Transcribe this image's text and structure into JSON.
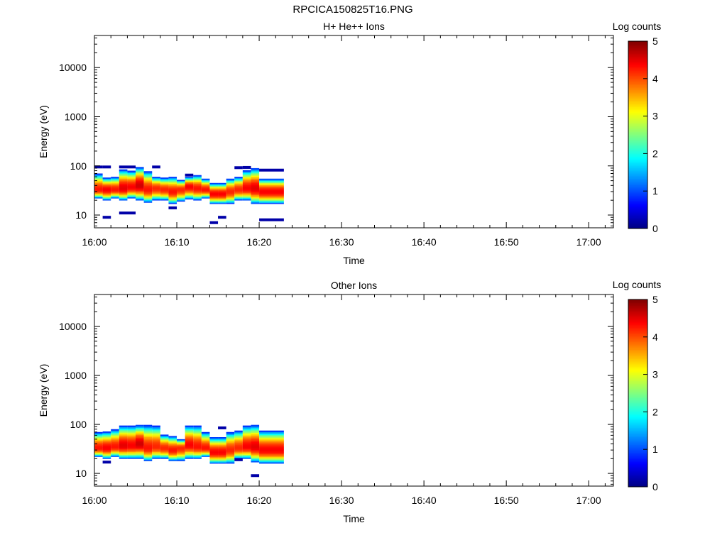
{
  "figure_title": "RPCICA150825T16.PNG",
  "colorbar": {
    "label": "Log counts",
    "ticks": [
      "0",
      "1",
      "2",
      "3",
      "4",
      "5"
    ],
    "colormap": "jet",
    "range": [
      0,
      5
    ]
  },
  "chart_data": [
    {
      "type": "heatmap",
      "title": "H+ He++ Ions",
      "xlabel": "Time",
      "ylabel": "Energy (eV)",
      "x_range": [
        "16:00",
        "17:03"
      ],
      "x_ticks": [
        "16:00",
        "16:10",
        "16:20",
        "16:30",
        "16:40",
        "16:50",
        "17:00"
      ],
      "y_scale": "log",
      "y_range": [
        5.5,
        45000
      ],
      "y_ticks": [
        "10",
        "100",
        "1000",
        "10000"
      ],
      "data_time_range": [
        "16:00",
        "16:23"
      ],
      "time_bins": [
        "16:00",
        "16:01",
        "16:02",
        "16:03",
        "16:04",
        "16:05",
        "16:06",
        "16:07",
        "16:08",
        "16:09",
        "16:10",
        "16:11",
        "16:12",
        "16:13",
        "16:14",
        "16:15",
        "16:16",
        "16:17",
        "16:18",
        "16:19",
        "16:20",
        "16:21",
        "16:22"
      ],
      "bins": [
        {
          "t0": "16:00",
          "t1": "16:01",
          "e_low": 22,
          "e_high": 70,
          "e_peak": 33,
          "max_log": 4.3
        },
        {
          "t0": "16:01",
          "t1": "16:02",
          "e_low": 20,
          "e_high": 58,
          "e_peak": 33,
          "max_log": 4.4
        },
        {
          "t0": "16:02",
          "t1": "16:03",
          "e_low": 22,
          "e_high": 60,
          "e_peak": 33,
          "max_log": 4.3
        },
        {
          "t0": "16:03",
          "t1": "16:04",
          "e_low": 20,
          "e_high": 85,
          "e_peak": 35,
          "max_log": 4.5
        },
        {
          "t0": "16:04",
          "t1": "16:05",
          "e_low": 22,
          "e_high": 80,
          "e_peak": 37,
          "max_log": 4.4
        },
        {
          "t0": "16:05",
          "t1": "16:06",
          "e_low": 20,
          "e_high": 95,
          "e_peak": 40,
          "max_log": 4.6
        },
        {
          "t0": "16:06",
          "t1": "16:07",
          "e_low": 18,
          "e_high": 78,
          "e_peak": 33,
          "max_log": 4.3
        },
        {
          "t0": "16:07",
          "t1": "16:08",
          "e_low": 20,
          "e_high": 60,
          "e_peak": 35,
          "max_log": 4.2
        },
        {
          "t0": "16:08",
          "t1": "16:09",
          "e_low": 20,
          "e_high": 58,
          "e_peak": 33,
          "max_log": 4.2
        },
        {
          "t0": "16:09",
          "t1": "16:10",
          "e_low": 17,
          "e_high": 60,
          "e_peak": 30,
          "max_log": 4.3
        },
        {
          "t0": "16:10",
          "t1": "16:11",
          "e_low": 19,
          "e_high": 52,
          "e_peak": 33,
          "max_log": 4.2
        },
        {
          "t0": "16:11",
          "t1": "16:12",
          "e_low": 21,
          "e_high": 60,
          "e_peak": 38,
          "max_log": 4.4
        },
        {
          "t0": "16:12",
          "t1": "16:13",
          "e_low": 20,
          "e_high": 65,
          "e_peak": 35,
          "max_log": 4.3
        },
        {
          "t0": "16:13",
          "t1": "16:14",
          "e_low": 22,
          "e_high": 55,
          "e_peak": 33,
          "max_log": 4.3
        },
        {
          "t0": "16:14",
          "t1": "16:15",
          "e_low": 17,
          "e_high": 45,
          "e_peak": 27,
          "max_log": 4.4
        },
        {
          "t0": "16:15",
          "t1": "16:16",
          "e_low": 17,
          "e_high": 45,
          "e_peak": 27,
          "max_log": 4.4
        },
        {
          "t0": "16:16",
          "t1": "16:17",
          "e_low": 17,
          "e_high": 55,
          "e_peak": 30,
          "max_log": 4.2
        },
        {
          "t0": "16:17",
          "t1": "16:18",
          "e_low": 20,
          "e_high": 60,
          "e_peak": 33,
          "max_log": 4.2
        },
        {
          "t0": "16:18",
          "t1": "16:19",
          "e_low": 20,
          "e_high": 82,
          "e_peak": 35,
          "max_log": 4.4
        },
        {
          "t0": "16:19",
          "t1": "16:20",
          "e_low": 17,
          "e_high": 90,
          "e_peak": 35,
          "max_log": 4.5
        },
        {
          "t0": "16:20",
          "t1": "16:23",
          "e_low": 17,
          "e_high": 55,
          "e_peak": 30,
          "max_log": 4.4
        }
      ],
      "scatter_low_counts": [
        {
          "t0": "16:00",
          "t1": "16:01",
          "e": 95
        },
        {
          "t0": "16:01",
          "t1": "16:02",
          "e": 95
        },
        {
          "t0": "16:03",
          "t1": "16:05",
          "e": 95
        },
        {
          "t0": "16:03",
          "t1": "16:05",
          "e": 11
        },
        {
          "t0": "16:01",
          "t1": "16:02",
          "e": 9
        },
        {
          "t0": "16:07",
          "t1": "16:08",
          "e": 95
        },
        {
          "t0": "16:09",
          "t1": "16:10",
          "e": 14
        },
        {
          "t0": "16:11",
          "t1": "16:12",
          "e": 65
        },
        {
          "t0": "16:14",
          "t1": "16:15",
          "e": 7
        },
        {
          "t0": "16:15",
          "t1": "16:16",
          "e": 9
        },
        {
          "t0": "16:17",
          "t1": "16:18",
          "e": 92
        },
        {
          "t0": "16:18",
          "t1": "16:19",
          "e": 93
        },
        {
          "t0": "16:20",
          "t1": "16:23",
          "e": 82
        },
        {
          "t0": "16:20",
          "t1": "16:23",
          "e": 8
        }
      ]
    },
    {
      "type": "heatmap",
      "title": "Other Ions",
      "xlabel": "Time",
      "ylabel": "Energy (eV)",
      "x_range": [
        "16:00",
        "17:03"
      ],
      "x_ticks": [
        "16:00",
        "16:10",
        "16:20",
        "16:30",
        "16:40",
        "16:50",
        "17:00"
      ],
      "y_scale": "log",
      "y_range": [
        5.5,
        45000
      ],
      "y_ticks": [
        "10",
        "100",
        "1000",
        "10000"
      ],
      "data_time_range": [
        "16:00",
        "16:23"
      ],
      "time_bins": [
        "16:00",
        "16:01",
        "16:02",
        "16:03",
        "16:04",
        "16:05",
        "16:06",
        "16:07",
        "16:08",
        "16:09",
        "16:10",
        "16:11",
        "16:12",
        "16:13",
        "16:14",
        "16:15",
        "16:16",
        "16:17",
        "16:18",
        "16:19",
        "16:20",
        "16:21",
        "16:22"
      ],
      "bins": [
        {
          "t0": "16:00",
          "t1": "16:01",
          "e_low": 22,
          "e_high": 70,
          "e_peak": 33,
          "max_log": 4.3
        },
        {
          "t0": "16:01",
          "t1": "16:02",
          "e_low": 20,
          "e_high": 72,
          "e_peak": 33,
          "max_log": 4.4
        },
        {
          "t0": "16:02",
          "t1": "16:03",
          "e_low": 22,
          "e_high": 80,
          "e_peak": 35,
          "max_log": 4.3
        },
        {
          "t0": "16:03",
          "t1": "16:04",
          "e_low": 20,
          "e_high": 95,
          "e_peak": 37,
          "max_log": 4.5
        },
        {
          "t0": "16:04",
          "t1": "16:05",
          "e_low": 20,
          "e_high": 95,
          "e_peak": 37,
          "max_log": 4.4
        },
        {
          "t0": "16:05",
          "t1": "16:06",
          "e_low": 20,
          "e_high": 98,
          "e_peak": 40,
          "max_log": 4.6
        },
        {
          "t0": "16:06",
          "t1": "16:07",
          "e_low": 18,
          "e_high": 98,
          "e_peak": 33,
          "max_log": 4.3
        },
        {
          "t0": "16:07",
          "t1": "16:08",
          "e_low": 20,
          "e_high": 95,
          "e_peak": 35,
          "max_log": 4.2
        },
        {
          "t0": "16:08",
          "t1": "16:09",
          "e_low": 20,
          "e_high": 62,
          "e_peak": 33,
          "max_log": 4.2
        },
        {
          "t0": "16:09",
          "t1": "16:10",
          "e_low": 18,
          "e_high": 58,
          "e_peak": 30,
          "max_log": 4.3
        },
        {
          "t0": "16:10",
          "t1": "16:11",
          "e_low": 18,
          "e_high": 50,
          "e_peak": 33,
          "max_log": 4.2
        },
        {
          "t0": "16:11",
          "t1": "16:12",
          "e_low": 20,
          "e_high": 95,
          "e_peak": 38,
          "max_log": 4.4
        },
        {
          "t0": "16:12",
          "t1": "16:13",
          "e_low": 20,
          "e_high": 95,
          "e_peak": 35,
          "max_log": 4.3
        },
        {
          "t0": "16:13",
          "t1": "16:14",
          "e_low": 22,
          "e_high": 70,
          "e_peak": 33,
          "max_log": 4.3
        },
        {
          "t0": "16:14",
          "t1": "16:15",
          "e_low": 16,
          "e_high": 55,
          "e_peak": 27,
          "max_log": 4.4
        },
        {
          "t0": "16:15",
          "t1": "16:16",
          "e_low": 16,
          "e_high": 55,
          "e_peak": 27,
          "max_log": 4.4
        },
        {
          "t0": "16:16",
          "t1": "16:17",
          "e_low": 16,
          "e_high": 70,
          "e_peak": 30,
          "max_log": 4.2
        },
        {
          "t0": "16:17",
          "t1": "16:18",
          "e_low": 20,
          "e_high": 75,
          "e_peak": 33,
          "max_log": 4.2
        },
        {
          "t0": "16:18",
          "t1": "16:19",
          "e_low": 20,
          "e_high": 95,
          "e_peak": 35,
          "max_log": 4.4
        },
        {
          "t0": "16:19",
          "t1": "16:20",
          "e_low": 17,
          "e_high": 98,
          "e_peak": 35,
          "max_log": 4.5
        },
        {
          "t0": "16:20",
          "t1": "16:23",
          "e_low": 16,
          "e_high": 75,
          "e_peak": 30,
          "max_log": 4.4
        }
      ],
      "scatter_low_counts": [
        {
          "t0": "16:01",
          "t1": "16:02",
          "e": 17
        },
        {
          "t0": "16:15",
          "t1": "16:16",
          "e": 85
        },
        {
          "t0": "16:17",
          "t1": "16:18",
          "e": 19
        },
        {
          "t0": "16:19",
          "t1": "16:20",
          "e": 9
        }
      ]
    }
  ]
}
